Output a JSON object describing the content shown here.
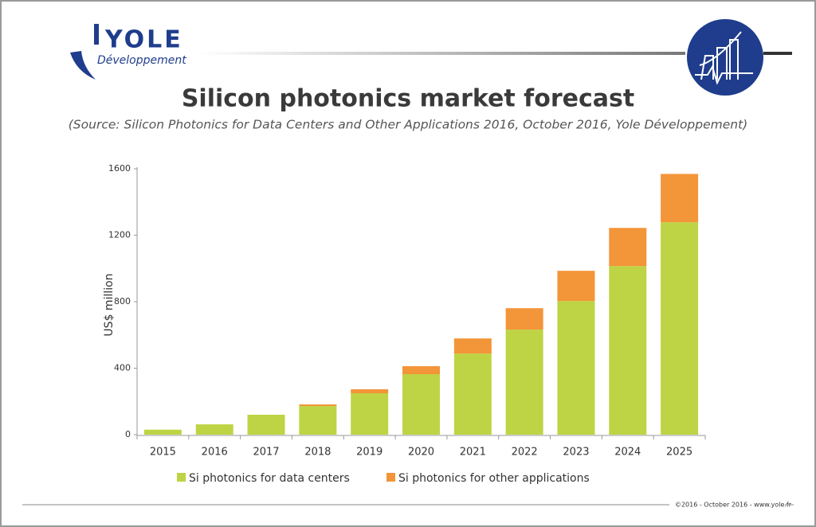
{
  "header": {
    "logo": "YOLE",
    "logo_sub": "Développement"
  },
  "footer": "©2016 - October 2016 - www.yole.fr",
  "chart_data": {
    "type": "stacked-bar",
    "title": "Silicon photonics market forecast",
    "subtitle": "(Source: Silicon Photonics for Data Centers and Other Applications 2016, October 2016, Yole Développement)",
    "y_label": "US$ million",
    "categories": [
      "2015",
      "2016",
      "2017",
      "2018",
      "2019",
      "2020",
      "2021",
      "2022",
      "2023",
      "2024",
      "2025"
    ],
    "series": [
      {
        "name": "Si photonics for data centers",
        "color": "#bed444",
        "values": [
          30,
          62,
          120,
          172,
          249,
          364,
          488,
          632,
          804,
          1014,
          1278
        ]
      },
      {
        "name": "Si photonics for other applications",
        "color": "#f39539",
        "values": [
          0,
          0,
          0,
          10,
          24,
          48,
          91,
          129,
          182,
          230,
          291
        ]
      }
    ],
    "ylim": [
      0,
      1600
    ],
    "yticks": [
      0,
      400,
      800,
      1200,
      1600
    ],
    "grid": false
  }
}
